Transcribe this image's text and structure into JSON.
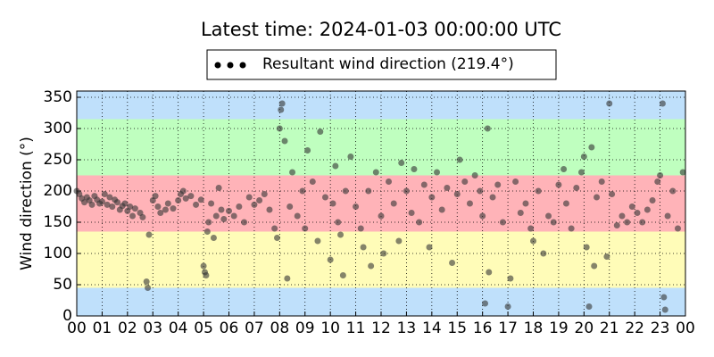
{
  "chart_data": {
    "type": "scatter",
    "title": "Latest time: 2024-01-03 00:00:00 UTC",
    "ylabel": "Wind direction (°)",
    "xlim": [
      0,
      24
    ],
    "ylim": [
      0,
      360
    ],
    "xticks": [
      {
        "value": 0,
        "label": "00"
      },
      {
        "value": 1,
        "label": "01"
      },
      {
        "value": 2,
        "label": "02"
      },
      {
        "value": 3,
        "label": "03"
      },
      {
        "value": 4,
        "label": "04"
      },
      {
        "value": 5,
        "label": "05"
      },
      {
        "value": 6,
        "label": "06"
      },
      {
        "value": 7,
        "label": "07"
      },
      {
        "value": 8,
        "label": "08"
      },
      {
        "value": 9,
        "label": "09"
      },
      {
        "value": 10,
        "label": "10"
      },
      {
        "value": 11,
        "label": "11"
      },
      {
        "value": 12,
        "label": "12"
      },
      {
        "value": 13,
        "label": "13"
      },
      {
        "value": 14,
        "label": "14"
      },
      {
        "value": 15,
        "label": "15"
      },
      {
        "value": 16,
        "label": "16"
      },
      {
        "value": 17,
        "label": "17"
      },
      {
        "value": 18,
        "label": "18"
      },
      {
        "value": 19,
        "label": "19"
      },
      {
        "value": 20,
        "label": "20"
      },
      {
        "value": 21,
        "label": "21"
      },
      {
        "value": 22,
        "label": "22"
      },
      {
        "value": 23,
        "label": "23"
      },
      {
        "value": 24,
        "label": "00"
      }
    ],
    "yticks": [
      0,
      50,
      100,
      150,
      200,
      250,
      300,
      350
    ],
    "grid": true,
    "legend": "upper center",
    "bands": [
      {
        "from": 0,
        "to": 45,
        "color": "#bfe0fb"
      },
      {
        "from": 45,
        "to": 135,
        "color": "#fffcb8"
      },
      {
        "from": 135,
        "to": 225,
        "color": "#ffb3b8"
      },
      {
        "from": 225,
        "to": 315,
        "color": "#bfffbf"
      },
      {
        "from": 315,
        "to": 360,
        "color": "#bfe0fb"
      }
    ],
    "series": [
      {
        "name": "Resultant wind direction (219.4°)",
        "color": "#333333",
        "alpha": 0.6,
        "x": [
          0.0,
          0.1,
          0.2,
          0.3,
          0.4,
          0.5,
          0.6,
          0.7,
          0.8,
          0.9,
          1.0,
          1.1,
          1.2,
          1.3,
          1.4,
          1.5,
          1.6,
          1.7,
          1.8,
          1.9,
          2.0,
          2.1,
          2.2,
          2.3,
          2.5,
          2.6,
          2.75,
          2.8,
          2.85,
          3.0,
          3.1,
          3.2,
          3.3,
          3.5,
          3.6,
          3.8,
          4.0,
          4.1,
          4.2,
          4.3,
          4.5,
          4.7,
          4.9,
          5.0,
          5.05,
          5.1,
          5.15,
          5.2,
          5.3,
          5.4,
          5.5,
          5.6,
          5.7,
          5.8,
          6.0,
          6.2,
          6.4,
          6.6,
          6.8,
          7.0,
          7.2,
          7.4,
          7.6,
          7.8,
          7.9,
          8.0,
          8.05,
          8.1,
          8.2,
          8.3,
          8.4,
          8.5,
          8.7,
          8.9,
          9.0,
          9.1,
          9.3,
          9.5,
          9.6,
          9.8,
          10.0,
          10.1,
          10.2,
          10.3,
          10.4,
          10.5,
          10.6,
          10.8,
          11.0,
          11.2,
          11.3,
          11.5,
          11.6,
          11.8,
          12.0,
          12.1,
          12.3,
          12.5,
          12.7,
          12.8,
          13.0,
          13.2,
          13.3,
          13.5,
          13.7,
          13.9,
          14.0,
          14.2,
          14.4,
          14.6,
          14.8,
          15.0,
          15.1,
          15.3,
          15.5,
          15.7,
          15.9,
          16.0,
          16.1,
          16.2,
          16.25,
          16.4,
          16.6,
          16.8,
          17.0,
          17.1,
          17.3,
          17.5,
          17.7,
          17.9,
          18.0,
          18.2,
          18.4,
          18.6,
          18.8,
          19.0,
          19.2,
          19.3,
          19.5,
          19.7,
          19.9,
          20.0,
          20.1,
          20.2,
          20.3,
          20.4,
          20.5,
          20.7,
          20.9,
          21.0,
          21.1,
          21.3,
          21.5,
          21.7,
          21.9,
          22.1,
          22.3,
          22.5,
          22.7,
          22.9,
          23.0,
          23.1,
          23.15,
          23.2,
          23.3,
          23.5,
          23.7,
          23.9
        ],
        "values": [
          200,
          195,
          188,
          182,
          190,
          185,
          178,
          192,
          186,
          180,
          183,
          195,
          178,
          190,
          175,
          186,
          182,
          170,
          176,
          180,
          168,
          175,
          160,
          172,
          165,
          158,
          55,
          45,
          130,
          185,
          192,
          175,
          165,
          170,
          180,
          172,
          185,
          195,
          200,
          188,
          192,
          178,
          186,
          80,
          70,
          65,
          135,
          150,
          180,
          125,
          160,
          205,
          170,
          155,
          168,
          160,
          175,
          150,
          190,
          178,
          185,
          195,
          170,
          140,
          125,
          300,
          330,
          340,
          280,
          60,
          175,
          230,
          160,
          200,
          140,
          265,
          215,
          120,
          295,
          190,
          90,
          180,
          240,
          150,
          130,
          65,
          200,
          255,
          175,
          140,
          110,
          200,
          80,
          230,
          160,
          100,
          215,
          180,
          120,
          245,
          200,
          165,
          235,
          150,
          210,
          110,
          190,
          230,
          170,
          205,
          85,
          195,
          250,
          215,
          180,
          225,
          200,
          160,
          20,
          300,
          70,
          190,
          210,
          150,
          15,
          60,
          215,
          165,
          180,
          140,
          120,
          200,
          100,
          160,
          150,
          210,
          235,
          180,
          140,
          205,
          230,
          255,
          110,
          15,
          270,
          80,
          190,
          215,
          95,
          340,
          195,
          145,
          160,
          150,
          175,
          165,
          150,
          170,
          185,
          215,
          225,
          340,
          30,
          10,
          160,
          200,
          140,
          230
        ]
      }
    ]
  }
}
